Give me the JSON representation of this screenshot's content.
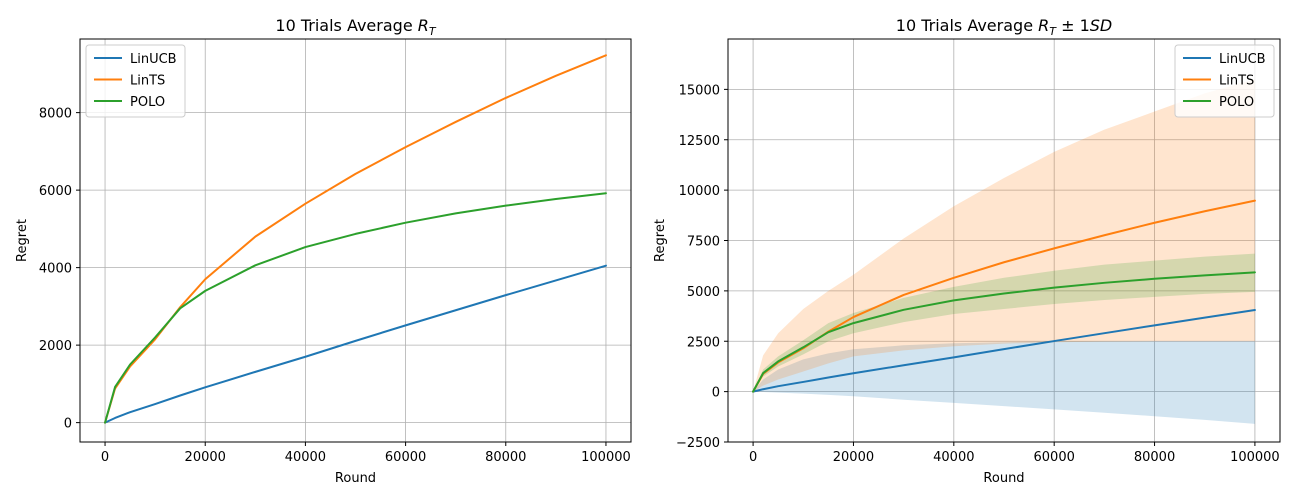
{
  "colors": {
    "LinUCB": "#1f77b4",
    "LinTS": "#ff7f0e",
    "POLO": "#2ca02c",
    "grid": "#b0b0b0",
    "spine": "#000000",
    "legend_border": "#cccccc"
  },
  "chart_data": [
    {
      "type": "line",
      "title": "10 Trials Average R_T",
      "title_main": "10 Trials Average ",
      "title_math": "R",
      "title_sub": "T",
      "title_suffix": "",
      "xlabel": "Round",
      "ylabel": "Regret",
      "xlim": [
        -5000,
        105000
      ],
      "ylim": [
        -500,
        9900
      ],
      "xticks": [
        0,
        20000,
        40000,
        60000,
        80000,
        100000
      ],
      "xtick_labels": [
        "0",
        "20000",
        "40000",
        "60000",
        "80000",
        "100000"
      ],
      "yticks": [
        0,
        2000,
        4000,
        6000,
        8000
      ],
      "ytick_labels": [
        "0",
        "2000",
        "4000",
        "6000",
        "8000"
      ],
      "grid": true,
      "legend_position": "upper-left",
      "x": [
        0,
        2000,
        5000,
        10000,
        15000,
        20000,
        30000,
        40000,
        50000,
        60000,
        70000,
        80000,
        90000,
        100000
      ],
      "series": [
        {
          "name": "LinUCB",
          "values": [
            0,
            120,
            270,
            480,
            700,
            910,
            1310,
            1700,
            2110,
            2510,
            2900,
            3290,
            3670,
            4050
          ]
        },
        {
          "name": "LinTS",
          "values": [
            0,
            880,
            1450,
            2150,
            2980,
            3700,
            4800,
            5650,
            6420,
            7110,
            7760,
            8380,
            8950,
            9480
          ]
        },
        {
          "name": "POLO",
          "values": [
            0,
            920,
            1500,
            2200,
            2950,
            3400,
            4060,
            4530,
            4870,
            5160,
            5400,
            5600,
            5770,
            5920
          ]
        }
      ]
    },
    {
      "type": "line",
      "title": "10 Trials Average R_T ± 1SD",
      "title_main": "10 Trials Average ",
      "title_math": "R",
      "title_sub": "T",
      "title_suffix": " ± 1SD",
      "xlabel": "Round",
      "ylabel": "Regret",
      "xlim": [
        -5000,
        105000
      ],
      "ylim": [
        -2500,
        17500
      ],
      "xticks": [
        0,
        20000,
        40000,
        60000,
        80000,
        100000
      ],
      "xtick_labels": [
        "0",
        "20000",
        "40000",
        "60000",
        "80000",
        "100000"
      ],
      "yticks": [
        -2500,
        0,
        2500,
        5000,
        7500,
        10000,
        12500,
        15000
      ],
      "ytick_labels": [
        "−2500",
        "0",
        "2500",
        "5000",
        "7500",
        "10000",
        "12500",
        "15000"
      ],
      "grid": true,
      "legend_position": "upper-right",
      "x": [
        0,
        2000,
        5000,
        10000,
        15000,
        20000,
        30000,
        40000,
        50000,
        60000,
        70000,
        80000,
        90000,
        100000
      ],
      "series": [
        {
          "name": "LinUCB",
          "values": [
            0,
            120,
            270,
            480,
            700,
            910,
            1310,
            1700,
            2110,
            2510,
            2900,
            3290,
            3670,
            4050
          ],
          "upper": [
            0,
            600,
            1100,
            1600,
            1900,
            2100,
            2300,
            2400,
            2450,
            2500,
            2500,
            2500,
            2500,
            2500
          ],
          "lower": [
            0,
            -20,
            -50,
            -100,
            -160,
            -230,
            -400,
            -560,
            -720,
            -880,
            -1050,
            -1220,
            -1400,
            -1600
          ]
        },
        {
          "name": "LinTS",
          "values": [
            0,
            880,
            1450,
            2150,
            2980,
            3700,
            4800,
            5650,
            6420,
            7110,
            7760,
            8380,
            8950,
            9480
          ],
          "upper": [
            0,
            1800,
            2900,
            4100,
            5000,
            5800,
            7600,
            9200,
            10600,
            11900,
            13000,
            13900,
            14800,
            15500
          ],
          "lower": [
            0,
            300,
            600,
            1000,
            1400,
            1750,
            2050,
            2250,
            2380,
            2450,
            2480,
            2500,
            2500,
            2500
          ]
        },
        {
          "name": "POLO",
          "values": [
            0,
            920,
            1500,
            2200,
            2950,
            3400,
            4060,
            4530,
            4870,
            5160,
            5400,
            5600,
            5770,
            5920
          ],
          "upper": [
            0,
            1100,
            1750,
            2550,
            3400,
            3900,
            4650,
            5200,
            5650,
            6000,
            6300,
            6500,
            6700,
            6850
          ],
          "lower": [
            0,
            750,
            1250,
            1850,
            2500,
            2900,
            3450,
            3850,
            4100,
            4350,
            4550,
            4700,
            4850,
            4950
          ]
        }
      ]
    }
  ]
}
